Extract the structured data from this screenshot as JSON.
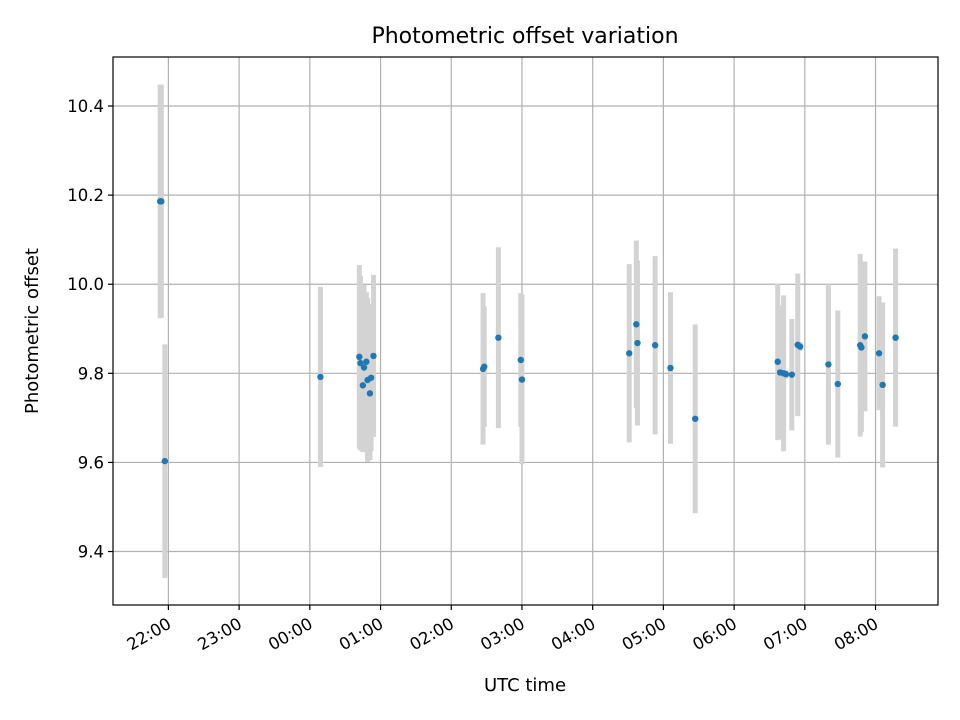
{
  "chart_data": {
    "type": "scatter",
    "title": "Photometric offset variation",
    "xlabel": "UTC time",
    "ylabel": "Photometric offset",
    "x_unit": "UTC time of night",
    "xlim": [
      "21:13",
      "08:53"
    ],
    "ylim": [
      9.28,
      10.51
    ],
    "x_ticks": [
      "22:00",
      "23:00",
      "00:00",
      "01:00",
      "02:00",
      "03:00",
      "04:00",
      "05:00",
      "06:00",
      "07:00",
      "08:00"
    ],
    "y_ticks": [
      9.4,
      9.6,
      9.8,
      10.0,
      10.2,
      10.4
    ],
    "y_tick_labels": [
      "9.4",
      "9.6",
      "9.8",
      "10.0",
      "10.2",
      "10.4"
    ],
    "grid": true,
    "legend": false,
    "colors": {
      "points": "#1f77b4",
      "error_bars": "#d3d3d3",
      "grid": "#b0b0b0"
    },
    "points": [
      {
        "x": "21:53",
        "y": 10.186,
        "err": 0.262
      },
      {
        "x": "21:54",
        "y": 10.186,
        "err": 0.262
      },
      {
        "x": "21:57",
        "y": 9.603,
        "err": 0.262
      },
      {
        "x": "00:09",
        "y": 9.792,
        "err": 0.202
      },
      {
        "x": "00:42",
        "y": 9.837,
        "err": 0.206
      },
      {
        "x": "00:43",
        "y": 9.823,
        "err": 0.196
      },
      {
        "x": "00:45",
        "y": 9.773,
        "err": 0.15
      },
      {
        "x": "00:46",
        "y": 9.813,
        "err": 0.186
      },
      {
        "x": "00:48",
        "y": 9.826,
        "err": 0.156
      },
      {
        "x": "00:49",
        "y": 9.785,
        "err": 0.184
      },
      {
        "x": "00:51",
        "y": 9.755,
        "err": 0.15
      },
      {
        "x": "00:52",
        "y": 9.79,
        "err": 0.165
      },
      {
        "x": "00:54",
        "y": 9.839,
        "err": 0.182
      },
      {
        "x": "02:27",
        "y": 9.81,
        "err": 0.17
      },
      {
        "x": "02:28",
        "y": 9.815,
        "err": 0.135
      },
      {
        "x": "02:40",
        "y": 9.88,
        "err": 0.203
      },
      {
        "x": "02:59",
        "y": 9.83,
        "err": 0.15
      },
      {
        "x": "03:00",
        "y": 9.786,
        "err": 0.19
      },
      {
        "x": "04:31",
        "y": 9.845,
        "err": 0.2
      },
      {
        "x": "04:37",
        "y": 9.91,
        "err": 0.188
      },
      {
        "x": "04:38",
        "y": 9.868,
        "err": 0.185
      },
      {
        "x": "04:53",
        "y": 9.863,
        "err": 0.2
      },
      {
        "x": "05:06",
        "y": 9.812,
        "err": 0.17
      },
      {
        "x": "05:27",
        "y": 9.698,
        "err": 0.212
      },
      {
        "x": "06:37",
        "y": 9.826,
        "err": 0.176
      },
      {
        "x": "06:39",
        "y": 9.802,
        "err": 0.15
      },
      {
        "x": "06:42",
        "y": 9.8,
        "err": 0.175
      },
      {
        "x": "06:44",
        "y": 9.798,
        "err": 0.01
      },
      {
        "x": "06:49",
        "y": 9.797,
        "err": 0.125
      },
      {
        "x": "06:54",
        "y": 9.864,
        "err": 0.16
      },
      {
        "x": "06:56",
        "y": 9.86,
        "err": 0.01
      },
      {
        "x": "07:20",
        "y": 9.82,
        "err": 0.18
      },
      {
        "x": "07:28",
        "y": 9.776,
        "err": 0.165
      },
      {
        "x": "07:47",
        "y": 9.863,
        "err": 0.205
      },
      {
        "x": "07:48",
        "y": 9.858,
        "err": 0.19
      },
      {
        "x": "07:51",
        "y": 9.883,
        "err": 0.168
      },
      {
        "x": "08:03",
        "y": 9.845,
        "err": 0.128
      },
      {
        "x": "08:06",
        "y": 9.774,
        "err": 0.185
      },
      {
        "x": "08:17",
        "y": 9.88,
        "err": 0.2
      }
    ]
  }
}
